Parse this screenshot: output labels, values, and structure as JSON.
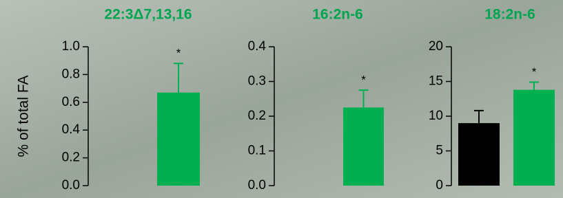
{
  "chart_data": [
    {
      "type": "bar",
      "title": "22:3Δ7,13,16",
      "y_label": "% of total FA",
      "categories": [
        null,
        null
      ],
      "values": [
        0,
        0.67
      ],
      "errors": [
        0,
        0.21
      ],
      "colors": [
        "#000000",
        "#00b050"
      ],
      "annotations": [
        null,
        "*"
      ],
      "ylim": [
        0,
        1.0
      ],
      "yticks": [
        {
          "value": 0,
          "label": "0.0"
        },
        {
          "value": 0.2,
          "label": "0.2"
        },
        {
          "value": 0.4,
          "label": "0.4"
        },
        {
          "value": 0.6,
          "label": "0.6"
        },
        {
          "value": 0.8,
          "label": "0.8"
        },
        {
          "value": 1.0,
          "label": "1.0"
        }
      ]
    },
    {
      "type": "bar",
      "title": "16:2n-6",
      "categories": [
        null,
        null
      ],
      "values": [
        0,
        0.225
      ],
      "errors": [
        0,
        0.05
      ],
      "colors": [
        "#000000",
        "#00b050"
      ],
      "annotations": [
        null,
        "*"
      ],
      "ylim": [
        0,
        0.4
      ],
      "yticks": [
        {
          "value": 0,
          "label": "0.0"
        },
        0.1,
        0.2,
        0.3,
        0.4
      ]
    },
    {
      "type": "bar",
      "title": "18:2n-6",
      "categories": [
        null,
        null
      ],
      "values": [
        9.0,
        13.8
      ],
      "errors": [
        1.8,
        1.1
      ],
      "colors": [
        "#000000",
        "#00b050"
      ],
      "annotations": [
        null,
        "*"
      ],
      "ylim": [
        0,
        20
      ],
      "yticks": [
        0,
        5,
        10,
        15,
        20
      ]
    }
  ]
}
